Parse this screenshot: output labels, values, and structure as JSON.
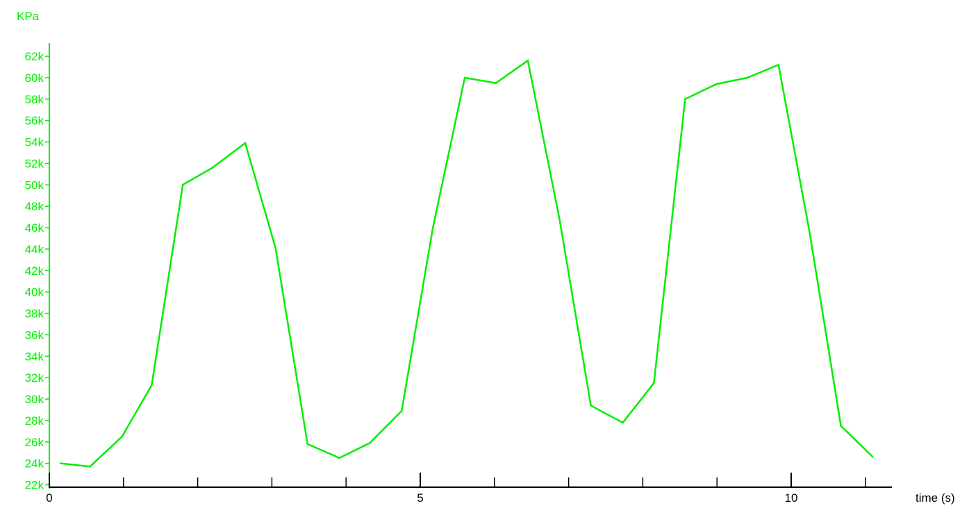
{
  "chart_data": {
    "type": "line",
    "title": "",
    "ylabel": "KPa",
    "xlabel": "time (s)",
    "xlim": [
      0,
      11.5
    ],
    "ylim": [
      22000,
      63000
    ],
    "x_tick_labels": [
      "0",
      "5",
      "10"
    ],
    "y_tick_labels": [
      "22k",
      "24k",
      "26k",
      "28k",
      "30k",
      "32k",
      "34k",
      "36k",
      "38k",
      "40k",
      "42k",
      "44k",
      "46k",
      "48k",
      "50k",
      "52k",
      "54k",
      "56k",
      "58k",
      "60k",
      "62k"
    ],
    "grid": false,
    "colors": {
      "y_axis": "#00ee00",
      "series": "#00ee00",
      "x_axis": "#000000"
    },
    "series": [
      {
        "x": [
          0.15,
          0.55,
          0.98,
          1.38,
          1.8,
          2.2,
          2.64,
          3.05,
          3.48,
          3.91,
          4.32,
          4.75,
          5.17,
          5.6,
          6.02,
          6.45,
          6.88,
          7.3,
          7.73,
          8.15,
          8.57,
          8.99,
          9.41,
          9.83,
          10.25,
          10.67,
          11.1
        ],
        "y": [
          24000,
          23700,
          26500,
          31300,
          50000,
          51600,
          53900,
          44100,
          25800,
          24500,
          25900,
          28900,
          46000,
          60000,
          59500,
          61600,
          46700,
          29400,
          27800,
          31500,
          58000,
          59400,
          60000,
          61200,
          45500,
          27500,
          24600
        ]
      }
    ]
  }
}
